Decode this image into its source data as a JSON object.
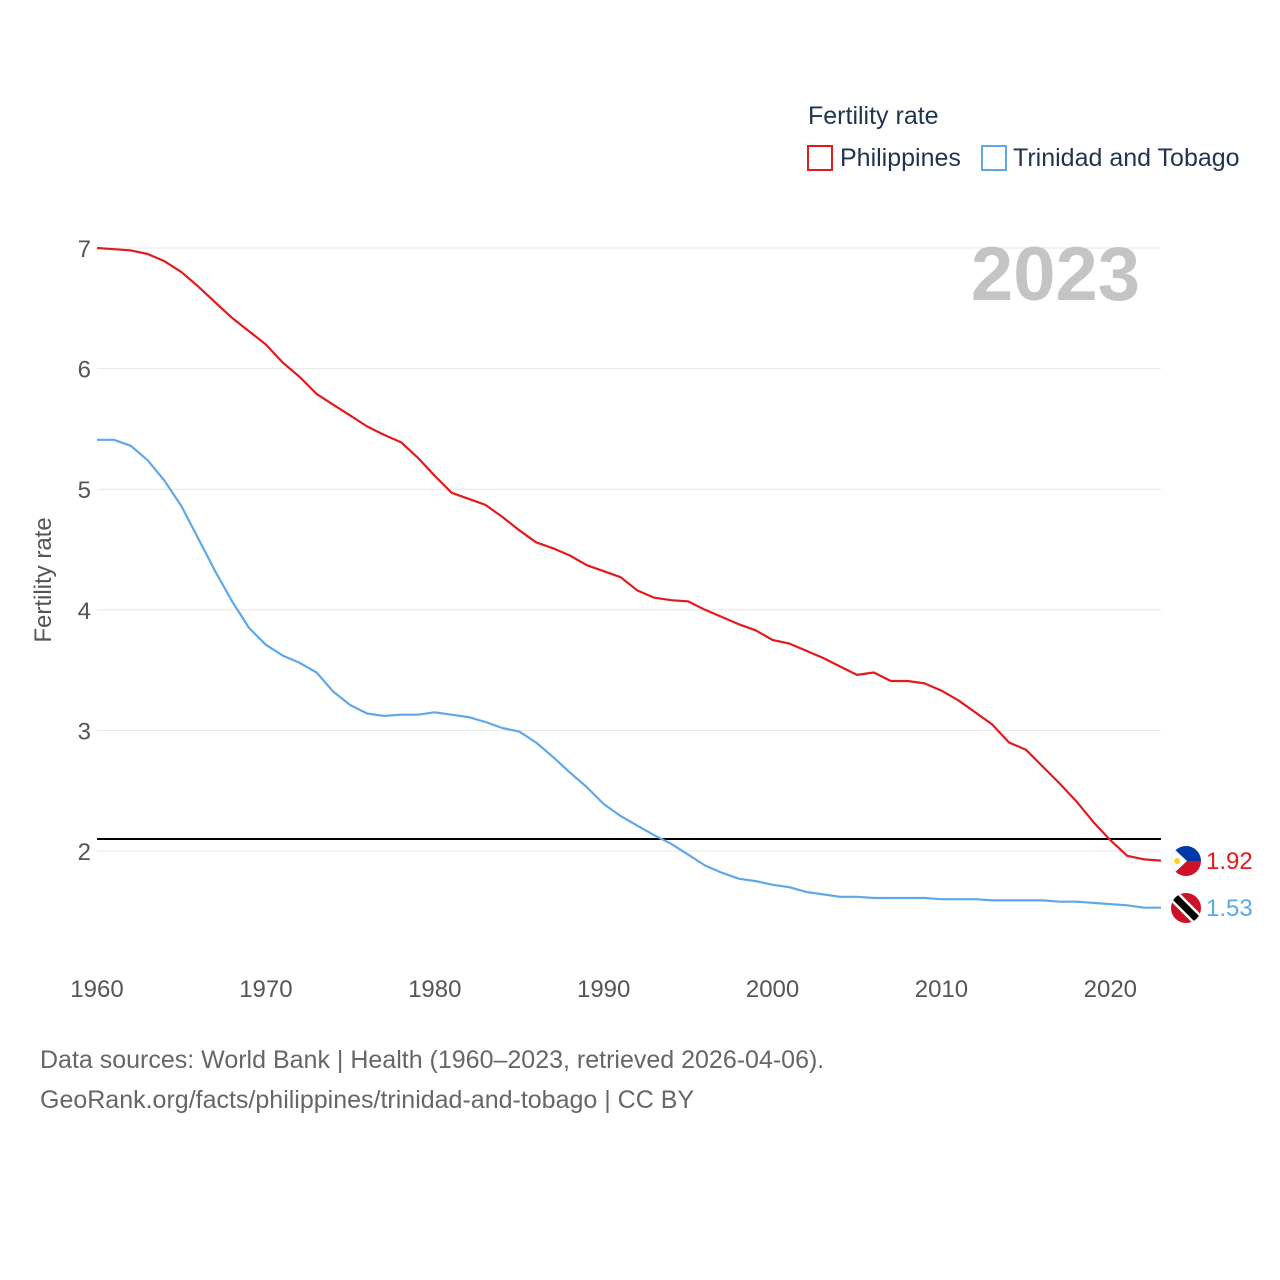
{
  "chart_data": {
    "type": "line",
    "legend_title": "Fertility rate",
    "ylabel": "Fertility rate",
    "xlabel": "",
    "year_label": "2023",
    "xlim": [
      1960,
      2023
    ],
    "ylim": [
      1.2,
      7.1
    ],
    "x_ticks": [
      1960,
      1970,
      1980,
      1990,
      2000,
      2010,
      2020
    ],
    "y_ticks": [
      2,
      3,
      4,
      5,
      6,
      7
    ],
    "reference_line": 2.1,
    "legend_placement": "top-right",
    "series": [
      {
        "name": "Philippines",
        "color": "#e31a1c",
        "end_label": "1.92",
        "flag": "philippines-flag",
        "x": [
          1960,
          1961,
          1962,
          1963,
          1964,
          1965,
          1966,
          1967,
          1968,
          1969,
          1970,
          1971,
          1972,
          1973,
          1974,
          1975,
          1976,
          1977,
          1978,
          1979,
          1980,
          1981,
          1982,
          1983,
          1984,
          1985,
          1986,
          1987,
          1988,
          1989,
          1990,
          1991,
          1992,
          1993,
          1994,
          1995,
          1996,
          1997,
          1998,
          1999,
          2000,
          2001,
          2002,
          2003,
          2004,
          2005,
          2006,
          2007,
          2008,
          2009,
          2010,
          2011,
          2012,
          2013,
          2014,
          2015,
          2016,
          2017,
          2018,
          2019,
          2020,
          2021,
          2022,
          2023
        ],
        "values": [
          7.0,
          6.99,
          6.98,
          6.95,
          6.89,
          6.8,
          6.68,
          6.55,
          6.42,
          6.31,
          6.2,
          6.05,
          5.93,
          5.79,
          5.7,
          5.61,
          5.52,
          5.45,
          5.39,
          5.26,
          5.11,
          4.97,
          4.92,
          4.87,
          4.77,
          4.66,
          4.56,
          4.51,
          4.45,
          4.37,
          4.32,
          4.27,
          4.16,
          4.1,
          4.08,
          4.07,
          4.0,
          3.94,
          3.88,
          3.83,
          3.75,
          3.72,
          3.66,
          3.6,
          3.53,
          3.46,
          3.48,
          3.41,
          3.41,
          3.39,
          3.33,
          3.25,
          3.15,
          3.05,
          2.9,
          2.84,
          2.7,
          2.56,
          2.41,
          2.24,
          2.09,
          1.96,
          1.93,
          1.92
        ]
      },
      {
        "name": "Trinidad and Tobago",
        "color": "#5fa8e8",
        "end_label": "1.53",
        "flag": "trinidad-and-tobago-flag",
        "x": [
          1960,
          1961,
          1962,
          1963,
          1964,
          1965,
          1966,
          1967,
          1968,
          1969,
          1970,
          1971,
          1972,
          1973,
          1974,
          1975,
          1976,
          1977,
          1978,
          1979,
          1980,
          1981,
          1982,
          1983,
          1984,
          1985,
          1986,
          1987,
          1988,
          1989,
          1990,
          1991,
          1992,
          1993,
          1994,
          1995,
          1996,
          1997,
          1998,
          1999,
          2000,
          2001,
          2002,
          2003,
          2004,
          2005,
          2006,
          2007,
          2008,
          2009,
          2010,
          2011,
          2012,
          2013,
          2014,
          2015,
          2016,
          2017,
          2018,
          2019,
          2020,
          2021,
          2022,
          2023
        ],
        "values": [
          5.41,
          5.41,
          5.36,
          5.24,
          5.07,
          4.86,
          4.59,
          4.32,
          4.07,
          3.85,
          3.71,
          3.62,
          3.56,
          3.48,
          3.32,
          3.21,
          3.14,
          3.12,
          3.13,
          3.13,
          3.15,
          3.13,
          3.11,
          3.07,
          3.02,
          2.99,
          2.9,
          2.78,
          2.65,
          2.53,
          2.39,
          2.29,
          2.21,
          2.13,
          2.06,
          1.97,
          1.88,
          1.82,
          1.77,
          1.75,
          1.72,
          1.7,
          1.66,
          1.64,
          1.62,
          1.62,
          1.61,
          1.61,
          1.61,
          1.61,
          1.6,
          1.6,
          1.6,
          1.59,
          1.59,
          1.59,
          1.59,
          1.58,
          1.58,
          1.57,
          1.56,
          1.55,
          1.53,
          1.53
        ]
      }
    ]
  },
  "footer": {
    "line1": "Data sources: World Bank | Health (1960–2023, retrieved 2026-04-06).",
    "line2": "GeoRank.org/facts/philippines/trinidad-and-tobago | CC BY"
  }
}
